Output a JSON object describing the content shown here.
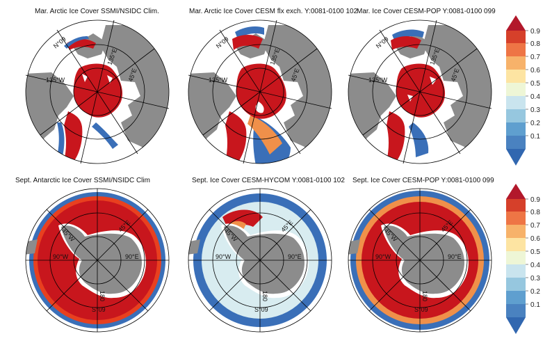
{
  "panels": [
    {
      "title": "Mar. Arctic Ice Cover SSMI/NSIDC Clim.",
      "hemisphere": "north",
      "grid_labels": [
        "135°W",
        "135°E",
        "45°E",
        "N°09"
      ]
    },
    {
      "title": "Mar. Arctic Ice Cover CESM flx exch. Y:0081-0100 102",
      "hemisphere": "north",
      "grid_labels": [
        "135°W",
        "135°E",
        "45°E",
        "N°09"
      ]
    },
    {
      "title": "Mar. Ice Cover CESM-POP Y:0081-0100 099",
      "hemisphere": "north",
      "grid_labels": [
        "135°W",
        "135°E",
        "45°E",
        "N°09"
      ]
    },
    {
      "title": "Sept. Antarctic Ice Cover SSMI/NSIDC Clim",
      "hemisphere": "south",
      "grid_labels": [
        "90°W",
        "90°E",
        "45°W",
        "45°E",
        "180",
        "S°09"
      ]
    },
    {
      "title": "Sept. Ice Cover CESM-HYCOM Y:0081-0100 102",
      "hemisphere": "south",
      "grid_labels": [
        "90°W",
        "90°E",
        "45°W",
        "45°E",
        "180",
        "S°09"
      ]
    },
    {
      "title": "Sept. Ice Cover CESM-POP Y:0081-0100 099",
      "hemisphere": "south",
      "grid_labels": [
        "90°W",
        "90°E",
        "45°W",
        "45°E",
        "180",
        "S°09"
      ]
    }
  ],
  "colorbar": {
    "labels": [
      "0.9",
      "0.8",
      "0.7",
      "0.6",
      "0.5",
      "0.4",
      "0.3",
      "0.2",
      "0.1"
    ],
    "colors": [
      "#b2182b",
      "#d6402a",
      "#ee7545",
      "#f7b26a",
      "#fde4a2",
      "#eef6d6",
      "#c9e4ee",
      "#96c7df",
      "#5f9fcf",
      "#3167b0"
    ]
  },
  "colors": {
    "land": "#8c8c8c",
    "ice_high": "#c8161d",
    "ice_mid": "#f0904a",
    "ice_low": "#3a6fb8",
    "frame": "#000000"
  }
}
